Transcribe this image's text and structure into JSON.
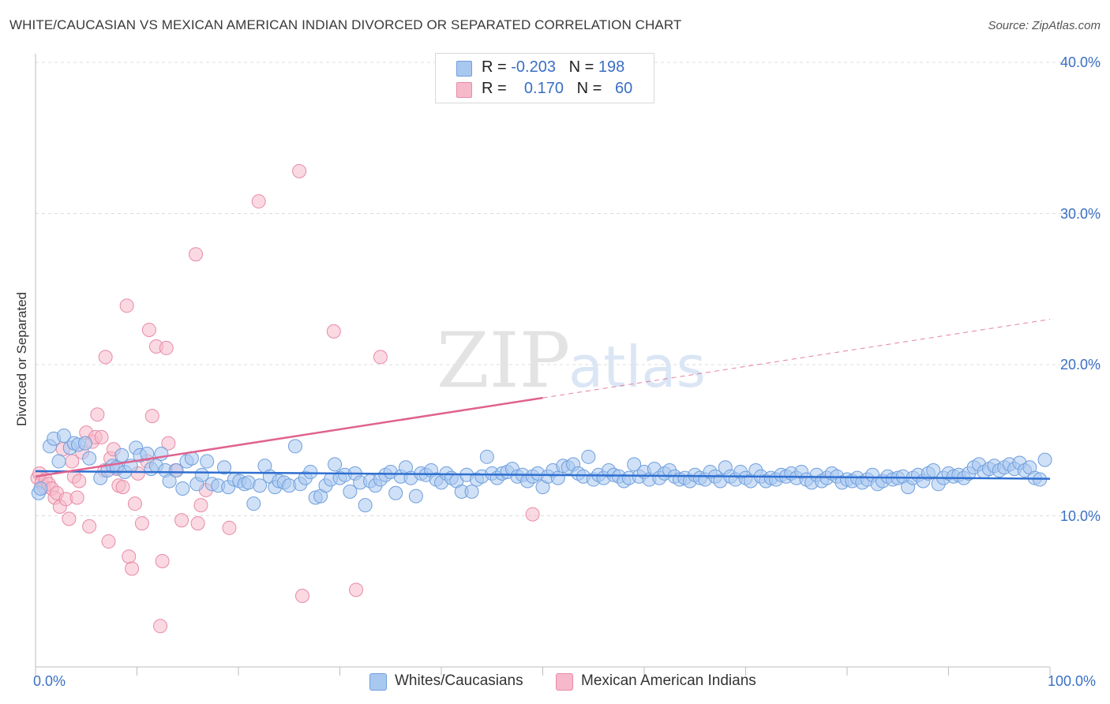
{
  "title": "WHITE/CAUCASIAN VS MEXICAN AMERICAN INDIAN DIVORCED OR SEPARATED CORRELATION CHART",
  "source": "Source: ZipAtlas.com",
  "watermark": {
    "zip": "ZIP",
    "atlas": "atlas"
  },
  "legend": {
    "rows": [
      {
        "r_label": "R = ",
        "r_value": "-0.203",
        "n_label": "N = ",
        "n_value": "198",
        "color": "#a9c8f0"
      },
      {
        "r_label": "R = ",
        "r_value": "0.170",
        "n_label": "N = ",
        "n_value": "60",
        "color": "#f6b9cb"
      }
    ]
  },
  "bottom_legend": [
    {
      "label": "Whites/Caucasians",
      "color": "#a9c8f0"
    },
    {
      "label": "Mexican American Indians",
      "color": "#f6b9cb"
    }
  ],
  "colors": {
    "blue_fill": "#a9c8f0",
    "blue_stroke": "#6f9fdc",
    "blue_line": "#2f6fd0",
    "pink_fill": "#f6b9cb",
    "pink_stroke": "#e88aa6",
    "pink_line": "#e0628f",
    "grid": "#dcdcdc",
    "tick_label": "#3a6fc4"
  },
  "chart_data": {
    "type": "scatter",
    "title": "WHITE/CAUCASIAN VS MEXICAN AMERICAN INDIAN DIVORCED OR SEPARATED CORRELATION CHART",
    "xlabel": "",
    "ylabel": "Divorced or Separated",
    "xlim": [
      0,
      100
    ],
    "ylim": [
      0,
      40
    ],
    "x_ticks": [
      "0.0%",
      "100.0%"
    ],
    "y_ticks": [
      {
        "value": 10,
        "label": "10.0%"
      },
      {
        "value": 20,
        "label": "20.0%"
      },
      {
        "value": 30,
        "label": "30.0%"
      },
      {
        "value": 40,
        "label": "40.0%"
      }
    ],
    "grid": "horizontal dashed",
    "legend_position": "top-center",
    "series": [
      {
        "name": "Whites/Caucasians",
        "R": -0.203,
        "N": 198,
        "trend": {
          "x": [
            0,
            100
          ],
          "y": [
            12.95,
            12.45
          ],
          "style": "solid"
        },
        "points": [
          [
            0.3,
            11.5
          ],
          [
            0.5,
            11.8
          ],
          [
            1.4,
            14.6
          ],
          [
            1.8,
            15.1
          ],
          [
            2.3,
            13.6
          ],
          [
            2.8,
            15.3
          ],
          [
            3.4,
            14.5
          ],
          [
            3.8,
            14.8
          ],
          [
            4.2,
            14.7
          ],
          [
            4.9,
            14.8
          ],
          [
            5.3,
            13.8
          ],
          [
            6.4,
            12.5
          ],
          [
            7.1,
            13.0
          ],
          [
            7.6,
            13.3
          ],
          [
            8.0,
            13.2
          ],
          [
            8.5,
            14.0
          ],
          [
            8.8,
            12.9
          ],
          [
            9.4,
            13.3
          ],
          [
            9.9,
            14.5
          ],
          [
            10.3,
            14.0
          ],
          [
            11.0,
            14.1
          ],
          [
            11.4,
            13.1
          ],
          [
            11.9,
            13.3
          ],
          [
            12.4,
            14.1
          ],
          [
            12.8,
            13.0
          ],
          [
            13.2,
            12.3
          ],
          [
            13.9,
            13.0
          ],
          [
            14.5,
            11.8
          ],
          [
            14.9,
            13.6
          ],
          [
            15.4,
            13.8
          ],
          [
            15.9,
            12.1
          ],
          [
            16.4,
            12.7
          ],
          [
            16.9,
            13.6
          ],
          [
            17.4,
            12.1
          ],
          [
            18.0,
            12.0
          ],
          [
            18.6,
            13.2
          ],
          [
            19.0,
            11.9
          ],
          [
            19.6,
            12.4
          ],
          [
            20.1,
            12.3
          ],
          [
            20.6,
            12.1
          ],
          [
            21.0,
            12.2
          ],
          [
            21.5,
            10.8
          ],
          [
            22.1,
            12.0
          ],
          [
            22.6,
            13.3
          ],
          [
            23.1,
            12.6
          ],
          [
            23.6,
            11.9
          ],
          [
            24.0,
            12.3
          ],
          [
            24.5,
            12.2
          ],
          [
            25.0,
            12.0
          ],
          [
            25.6,
            14.6
          ],
          [
            26.1,
            12.1
          ],
          [
            26.6,
            12.5
          ],
          [
            27.1,
            12.9
          ],
          [
            27.6,
            11.2
          ],
          [
            28.1,
            11.3
          ],
          [
            28.6,
            12.0
          ],
          [
            29.1,
            12.4
          ],
          [
            29.5,
            13.4
          ],
          [
            30.0,
            12.5
          ],
          [
            30.5,
            12.7
          ],
          [
            31.0,
            11.6
          ],
          [
            31.5,
            12.8
          ],
          [
            32.0,
            12.2
          ],
          [
            32.5,
            10.7
          ],
          [
            33.0,
            12.3
          ],
          [
            33.5,
            12.0
          ],
          [
            34.0,
            12.4
          ],
          [
            34.5,
            12.7
          ],
          [
            35.0,
            12.9
          ],
          [
            35.5,
            11.5
          ],
          [
            36.0,
            12.6
          ],
          [
            36.5,
            13.2
          ],
          [
            37.0,
            12.5
          ],
          [
            37.5,
            11.3
          ],
          [
            38.0,
            12.8
          ],
          [
            38.5,
            12.7
          ],
          [
            39.0,
            13.0
          ],
          [
            39.5,
            12.4
          ],
          [
            40.0,
            12.2
          ],
          [
            40.5,
            12.8
          ],
          [
            41.0,
            12.5
          ],
          [
            41.5,
            12.3
          ],
          [
            42.0,
            11.6
          ],
          [
            42.5,
            12.7
          ],
          [
            43.0,
            11.6
          ],
          [
            43.5,
            12.4
          ],
          [
            44.0,
            12.6
          ],
          [
            44.5,
            13.9
          ],
          [
            45.0,
            12.8
          ],
          [
            45.5,
            12.5
          ],
          [
            46.0,
            12.8
          ],
          [
            46.5,
            12.9
          ],
          [
            47.0,
            13.1
          ],
          [
            47.5,
            12.6
          ],
          [
            48.0,
            12.7
          ],
          [
            48.5,
            12.3
          ],
          [
            49.0,
            12.6
          ],
          [
            49.5,
            12.8
          ],
          [
            50.0,
            11.9
          ],
          [
            50.5,
            12.6
          ],
          [
            51.0,
            13.0
          ],
          [
            51.5,
            12.5
          ],
          [
            52.0,
            13.3
          ],
          [
            52.5,
            13.2
          ],
          [
            53.0,
            13.4
          ],
          [
            53.5,
            12.8
          ],
          [
            54.0,
            12.6
          ],
          [
            54.5,
            13.9
          ],
          [
            55.0,
            12.4
          ],
          [
            55.5,
            12.7
          ],
          [
            56.0,
            12.5
          ],
          [
            56.5,
            13.0
          ],
          [
            57.0,
            12.7
          ],
          [
            57.5,
            12.6
          ],
          [
            58.0,
            12.3
          ],
          [
            58.5,
            12.5
          ],
          [
            59.0,
            13.4
          ],
          [
            59.5,
            12.6
          ],
          [
            60.0,
            12.9
          ],
          [
            60.5,
            12.4
          ],
          [
            61.0,
            13.1
          ],
          [
            61.5,
            12.5
          ],
          [
            62.0,
            12.8
          ],
          [
            62.5,
            13.0
          ],
          [
            63.0,
            12.6
          ],
          [
            63.5,
            12.4
          ],
          [
            64.0,
            12.5
          ],
          [
            64.5,
            12.3
          ],
          [
            65.0,
            12.7
          ],
          [
            65.5,
            12.5
          ],
          [
            66.0,
            12.4
          ],
          [
            66.5,
            12.9
          ],
          [
            67.0,
            12.6
          ],
          [
            67.5,
            12.3
          ],
          [
            68.0,
            13.2
          ],
          [
            68.5,
            12.6
          ],
          [
            69.0,
            12.4
          ],
          [
            69.5,
            12.9
          ],
          [
            70.0,
            12.5
          ],
          [
            70.5,
            12.3
          ],
          [
            71.0,
            13.0
          ],
          [
            71.5,
            12.6
          ],
          [
            72.0,
            12.3
          ],
          [
            72.5,
            12.5
          ],
          [
            73.0,
            12.4
          ],
          [
            73.5,
            12.7
          ],
          [
            74.0,
            12.6
          ],
          [
            74.5,
            12.8
          ],
          [
            75.0,
            12.5
          ],
          [
            75.5,
            12.9
          ],
          [
            76.0,
            12.4
          ],
          [
            76.5,
            12.2
          ],
          [
            77.0,
            12.7
          ],
          [
            77.5,
            12.3
          ],
          [
            78.0,
            12.5
          ],
          [
            78.5,
            12.8
          ],
          [
            79.0,
            12.6
          ],
          [
            79.5,
            12.2
          ],
          [
            80.0,
            12.4
          ],
          [
            80.5,
            12.3
          ],
          [
            81.0,
            12.5
          ],
          [
            81.5,
            12.2
          ],
          [
            82.0,
            12.4
          ],
          [
            82.5,
            12.7
          ],
          [
            83.0,
            12.1
          ],
          [
            83.5,
            12.3
          ],
          [
            84.0,
            12.6
          ],
          [
            84.5,
            12.4
          ],
          [
            85.0,
            12.5
          ],
          [
            85.5,
            12.6
          ],
          [
            86.0,
            11.9
          ],
          [
            86.5,
            12.5
          ],
          [
            87.0,
            12.7
          ],
          [
            87.5,
            12.3
          ],
          [
            88.0,
            12.8
          ],
          [
            88.5,
            13.0
          ],
          [
            89.0,
            12.1
          ],
          [
            89.5,
            12.5
          ],
          [
            90.0,
            12.8
          ],
          [
            90.5,
            12.6
          ],
          [
            91.0,
            12.7
          ],
          [
            91.5,
            12.5
          ],
          [
            92.0,
            12.8
          ],
          [
            92.5,
            13.2
          ],
          [
            93.0,
            13.4
          ],
          [
            93.5,
            12.9
          ],
          [
            94.0,
            13.1
          ],
          [
            94.5,
            13.3
          ],
          [
            95.0,
            13.0
          ],
          [
            95.5,
            13.2
          ],
          [
            96.0,
            13.4
          ],
          [
            96.5,
            13.1
          ],
          [
            97.0,
            13.5
          ],
          [
            97.5,
            13.0
          ],
          [
            98.0,
            13.2
          ],
          [
            98.5,
            12.5
          ],
          [
            99.0,
            12.4
          ],
          [
            99.5,
            13.7
          ]
        ]
      },
      {
        "name": "Mexican American Indians",
        "R": 0.17,
        "N": 60,
        "trend": {
          "x": [
            0,
            50
          ],
          "y": [
            12.6,
            17.8
          ],
          "style": "solid"
        },
        "trend_extension": {
          "x": [
            50,
            100
          ],
          "y": [
            17.8,
            23.0
          ],
          "style": "dashed"
        },
        "points": [
          [
            0.2,
            12.5
          ],
          [
            0.4,
            12.8
          ],
          [
            0.6,
            12.2
          ],
          [
            0.8,
            11.9
          ],
          [
            1.0,
            12.4
          ],
          [
            1.3,
            12.1
          ],
          [
            1.6,
            11.8
          ],
          [
            1.9,
            11.2
          ],
          [
            2.1,
            11.5
          ],
          [
            2.4,
            10.6
          ],
          [
            2.7,
            14.4
          ],
          [
            3.0,
            11.1
          ],
          [
            3.3,
            9.8
          ],
          [
            3.6,
            13.6
          ],
          [
            3.8,
            12.6
          ],
          [
            4.1,
            11.2
          ],
          [
            4.3,
            12.3
          ],
          [
            4.6,
            14.2
          ],
          [
            5.0,
            15.5
          ],
          [
            5.3,
            9.3
          ],
          [
            5.6,
            14.9
          ],
          [
            5.9,
            15.2
          ],
          [
            6.1,
            16.7
          ],
          [
            6.5,
            15.2
          ],
          [
            6.8,
            13.0
          ],
          [
            6.9,
            20.5
          ],
          [
            7.2,
            8.3
          ],
          [
            7.4,
            13.8
          ],
          [
            7.7,
            14.4
          ],
          [
            8.0,
            13.1
          ],
          [
            8.2,
            12.0
          ],
          [
            8.6,
            11.9
          ],
          [
            9.0,
            23.9
          ],
          [
            9.2,
            7.3
          ],
          [
            9.5,
            6.5
          ],
          [
            9.8,
            10.8
          ],
          [
            10.1,
            12.8
          ],
          [
            10.5,
            9.5
          ],
          [
            11.0,
            13.6
          ],
          [
            11.2,
            22.3
          ],
          [
            11.5,
            16.6
          ],
          [
            11.9,
            21.2
          ],
          [
            12.3,
            2.7
          ],
          [
            12.5,
            7.0
          ],
          [
            12.9,
            21.1
          ],
          [
            13.1,
            14.8
          ],
          [
            13.8,
            13.0
          ],
          [
            14.4,
            9.7
          ],
          [
            15.8,
            27.3
          ],
          [
            16.0,
            9.5
          ],
          [
            16.3,
            10.7
          ],
          [
            16.8,
            11.7
          ],
          [
            19.1,
            9.2
          ],
          [
            22.0,
            30.8
          ],
          [
            26.0,
            32.8
          ],
          [
            26.3,
            4.7
          ],
          [
            29.4,
            22.2
          ],
          [
            31.6,
            5.1
          ],
          [
            34.0,
            20.5
          ],
          [
            49.0,
            10.1
          ]
        ]
      }
    ]
  }
}
